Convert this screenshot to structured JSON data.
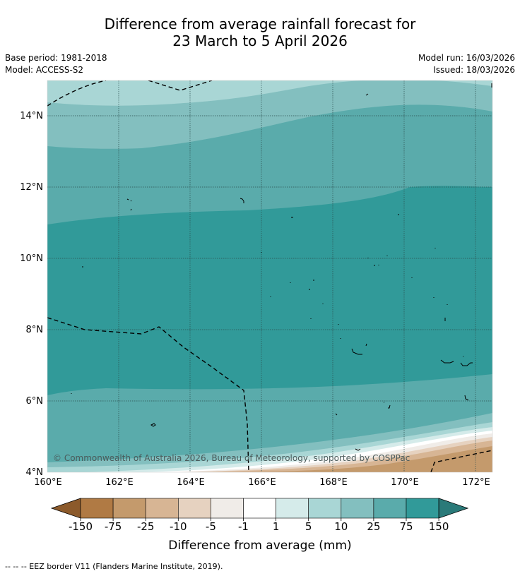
{
  "title_line1": "Difference from average rainfall forecast for",
  "title_line2": "23 March to 5 April 2026",
  "base_period": "Base period: 1981-2018",
  "model": "Model: ACCESS-S2",
  "model_run": "Model run: 16/03/2026",
  "issued": "Issued: 18/03/2026",
  "copyright": "© Commonwealth of Australia 2026, Bureau of Meteorology, supported by COSPPac",
  "lat_labels": [
    "14°N",
    "12°N",
    "10°N",
    "8°N",
    "6°N",
    "4°N"
  ],
  "lon_labels": [
    "160°E",
    "162°E",
    "164°E",
    "166°E",
    "168°E",
    "170°E",
    "172°E"
  ],
  "colorbar": {
    "label": "Difference from average (mm)",
    "ticks": [
      "-150",
      "-75",
      "-25",
      "-10",
      "-5",
      "-1",
      "1",
      "5",
      "10",
      "25",
      "75",
      "150"
    ],
    "colors": [
      "#8c5a2b",
      "#b07a44",
      "#c49a6c",
      "#d7b594",
      "#e6d2c0",
      "#f0ece8",
      "#ffffff",
      "#d5ebea",
      "#a9d6d5",
      "#83bfbf",
      "#5aabab",
      "#319a99",
      "#2a7a79"
    ]
  },
  "footnote": "-- -- -- EEZ border V11 (Flanders Marine Institute, 2019)."
}
